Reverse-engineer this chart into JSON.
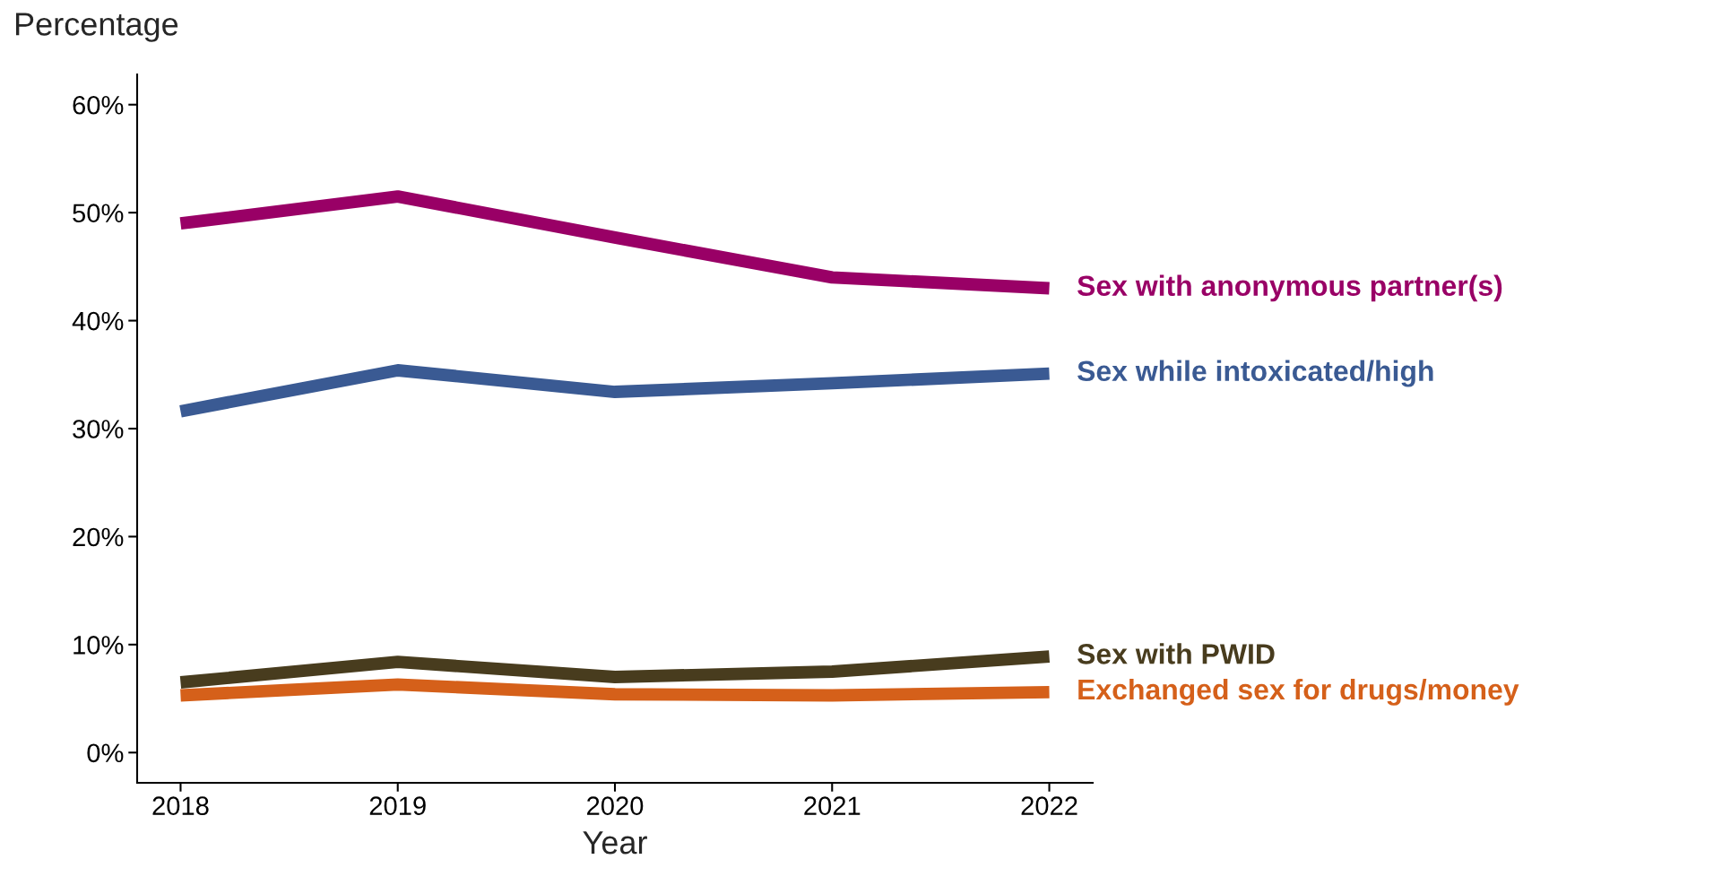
{
  "chart_data": {
    "type": "line",
    "ylabel": "Percentage",
    "xlabel": "Year",
    "x": [
      2018,
      2019,
      2020,
      2021,
      2022
    ],
    "series": [
      {
        "name": "Sex with anonymous partner(s)",
        "color": "#990066",
        "values": [
          49.0,
          51.5,
          47.7,
          44.0,
          43.0
        ]
      },
      {
        "name": "Sex while intoxicated/high",
        "color": "#3a5a93",
        "values": [
          31.6,
          35.4,
          33.4,
          34.2,
          35.1
        ]
      },
      {
        "name": "Sex with PWID",
        "color": "#483c1e",
        "values": [
          6.5,
          8.4,
          7.0,
          7.5,
          8.9
        ]
      },
      {
        "name": "Exchanged sex for drugs/money",
        "color": "#d5601a",
        "values": [
          5.3,
          6.3,
          5.4,
          5.3,
          5.6
        ]
      }
    ],
    "xlim": [
      2017.8,
      2022.2
    ],
    "xticks": [
      2018,
      2019,
      2020,
      2021,
      2022
    ],
    "ylim": [
      -2.8,
      62.8
    ],
    "yticks": [
      {
        "value": 0,
        "label": "0%"
      },
      {
        "value": 10,
        "label": "10%"
      },
      {
        "value": 20,
        "label": "20%"
      },
      {
        "value": 30,
        "label": "30%"
      },
      {
        "value": 40,
        "label": "40%"
      },
      {
        "value": 50,
        "label": "50%"
      },
      {
        "value": 60,
        "label": "60%"
      }
    ],
    "grid": false,
    "legend": false,
    "line_style": "solid",
    "marker": "none"
  }
}
